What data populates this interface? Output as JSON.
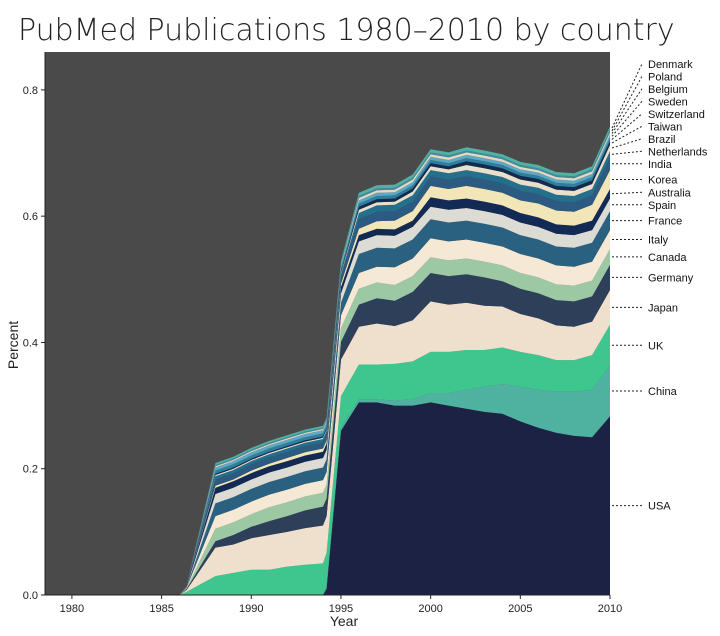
{
  "chart_data": {
    "type": "area",
    "title": "PubMed Publications 1980–2010 by country",
    "xlabel": "Year",
    "ylabel": "Percent",
    "xlim": [
      1978.5,
      2010
    ],
    "ylim": [
      0,
      0.86
    ],
    "xticks": [
      1980,
      1985,
      1990,
      1995,
      2000,
      2005,
      2010
    ],
    "yticks": [
      0.0,
      0.2,
      0.4,
      0.6,
      0.8
    ],
    "background": "#4a4a4a",
    "x": [
      1978.5,
      1986,
      1986.4,
      1988,
      1989,
      1990,
      1991,
      1992,
      1993,
      1994,
      1994.2,
      1995,
      1996,
      1997,
      1998,
      1999,
      2000,
      2001,
      2002,
      2003,
      2004,
      2005,
      2006,
      2007,
      2008,
      2009,
      2010
    ],
    "series": [
      {
        "name": "USA",
        "color": "#1c2244",
        "values": [
          0,
          0,
          0,
          0,
          0,
          0,
          0,
          0,
          0,
          0,
          0.01,
          0.26,
          0.305,
          0.305,
          0.3,
          0.3,
          0.305,
          0.3,
          0.295,
          0.29,
          0.287,
          0.275,
          0.265,
          0.257,
          0.252,
          0.25,
          0.283
        ]
      },
      {
        "name": "China",
        "color": "#4fb2a0",
        "values": [
          0,
          0,
          0,
          0,
          0,
          0,
          0,
          0,
          0,
          0,
          0.005,
          0.005,
          0.005,
          0.005,
          0.008,
          0.01,
          0.015,
          0.02,
          0.03,
          0.04,
          0.047,
          0.055,
          0.06,
          0.065,
          0.07,
          0.075,
          0.08
        ]
      },
      {
        "name": "UK",
        "color": "#3fc68f",
        "values": [
          0,
          0,
          0.005,
          0.03,
          0.035,
          0.04,
          0.04,
          0.045,
          0.048,
          0.05,
          0.052,
          0.05,
          0.055,
          0.055,
          0.058,
          0.06,
          0.065,
          0.065,
          0.063,
          0.058,
          0.058,
          0.055,
          0.055,
          0.05,
          0.05,
          0.055,
          0.065
        ]
      },
      {
        "name": "Japan",
        "color": "#efe0cd",
        "values": [
          0,
          0,
          0.003,
          0.045,
          0.045,
          0.05,
          0.055,
          0.055,
          0.058,
          0.06,
          0.058,
          0.058,
          0.06,
          0.065,
          0.06,
          0.065,
          0.08,
          0.075,
          0.075,
          0.07,
          0.065,
          0.06,
          0.058,
          0.055,
          0.053,
          0.053,
          0.055
        ]
      },
      {
        "name": "Germany",
        "color": "#2e3f5a",
        "values": [
          0,
          0,
          0.002,
          0.01,
          0.015,
          0.018,
          0.022,
          0.025,
          0.028,
          0.03,
          0.028,
          0.028,
          0.035,
          0.04,
          0.04,
          0.045,
          0.045,
          0.045,
          0.045,
          0.045,
          0.04,
          0.04,
          0.04,
          0.04,
          0.04,
          0.04,
          0.04
        ]
      },
      {
        "name": "Canada",
        "color": "#9cc8a4",
        "values": [
          0,
          0,
          0.001,
          0.02,
          0.02,
          0.02,
          0.022,
          0.022,
          0.022,
          0.022,
          0.022,
          0.022,
          0.025,
          0.025,
          0.025,
          0.025,
          0.025,
          0.025,
          0.025,
          0.025,
          0.025,
          0.025,
          0.025,
          0.025,
          0.025,
          0.025,
          0.025
        ]
      },
      {
        "name": "Italy",
        "color": "#f5e8d4",
        "values": [
          0,
          0,
          0.001,
          0.02,
          0.02,
          0.02,
          0.02,
          0.02,
          0.02,
          0.02,
          0.02,
          0.02,
          0.025,
          0.025,
          0.028,
          0.028,
          0.03,
          0.03,
          0.03,
          0.03,
          0.03,
          0.03,
          0.03,
          0.03,
          0.03,
          0.03,
          0.03
        ]
      },
      {
        "name": "France",
        "color": "#2a6080",
        "values": [
          0,
          0,
          0.001,
          0.02,
          0.02,
          0.02,
          0.02,
          0.02,
          0.02,
          0.02,
          0.02,
          0.02,
          0.03,
          0.03,
          0.03,
          0.03,
          0.03,
          0.03,
          0.03,
          0.03,
          0.03,
          0.03,
          0.03,
          0.03,
          0.03,
          0.03,
          0.03
        ]
      },
      {
        "name": "Spain",
        "color": "#dcdcd4",
        "values": [
          0,
          0,
          0.001,
          0.015,
          0.015,
          0.015,
          0.015,
          0.015,
          0.015,
          0.015,
          0.015,
          0.015,
          0.02,
          0.02,
          0.02,
          0.02,
          0.02,
          0.02,
          0.02,
          0.02,
          0.02,
          0.02,
          0.02,
          0.02,
          0.02,
          0.02,
          0.02
        ]
      },
      {
        "name": "Australia",
        "color": "#132a55",
        "values": [
          0,
          0,
          0.001,
          0.01,
          0.01,
          0.01,
          0.01,
          0.01,
          0.01,
          0.01,
          0.01,
          0.01,
          0.01,
          0.01,
          0.01,
          0.01,
          0.015,
          0.015,
          0.015,
          0.015,
          0.015,
          0.015,
          0.015,
          0.015,
          0.015,
          0.015,
          0.015
        ]
      },
      {
        "name": "Korea",
        "color": "#f2e6b8",
        "values": [
          0,
          0,
          0.0,
          0.003,
          0.003,
          0.004,
          0.004,
          0.005,
          0.005,
          0.005,
          0.005,
          0.005,
          0.01,
          0.012,
          0.014,
          0.015,
          0.018,
          0.018,
          0.02,
          0.02,
          0.02,
          0.02,
          0.022,
          0.022,
          0.022,
          0.025,
          0.03
        ]
      },
      {
        "name": "India",
        "color": "#2c5a80",
        "values": [
          0,
          0,
          0.001,
          0.01,
          0.01,
          0.01,
          0.01,
          0.01,
          0.01,
          0.01,
          0.01,
          0.01,
          0.015,
          0.015,
          0.015,
          0.015,
          0.015,
          0.015,
          0.015,
          0.015,
          0.015,
          0.015,
          0.015,
          0.015,
          0.015,
          0.015,
          0.02
        ]
      },
      {
        "name": "Netherlands",
        "color": "#246f8c",
        "values": [
          0,
          0,
          0.0,
          0.005,
          0.005,
          0.005,
          0.005,
          0.005,
          0.005,
          0.005,
          0.005,
          0.005,
          0.01,
          0.01,
          0.01,
          0.01,
          0.01,
          0.01,
          0.01,
          0.01,
          0.01,
          0.01,
          0.01,
          0.01,
          0.01,
          0.01,
          0.01
        ]
      },
      {
        "name": "Brazil",
        "color": "#e9e0cc",
        "values": [
          0,
          0,
          0.0,
          0.002,
          0.002,
          0.002,
          0.002,
          0.002,
          0.002,
          0.002,
          0.002,
          0.002,
          0.005,
          0.005,
          0.005,
          0.006,
          0.006,
          0.006,
          0.008,
          0.008,
          0.008,
          0.008,
          0.008,
          0.008,
          0.008,
          0.008,
          0.01
        ]
      },
      {
        "name": "Taiwan",
        "color": "#122b4e",
        "values": [
          0,
          0,
          0.0,
          0.002,
          0.002,
          0.002,
          0.002,
          0.002,
          0.002,
          0.002,
          0.002,
          0.002,
          0.005,
          0.005,
          0.005,
          0.005,
          0.005,
          0.005,
          0.006,
          0.006,
          0.006,
          0.006,
          0.006,
          0.006,
          0.006,
          0.006,
          0.006
        ]
      },
      {
        "name": "Switzerland",
        "color": "#2e7ea0",
        "values": [
          0,
          0,
          0.0,
          0.005,
          0.005,
          0.005,
          0.005,
          0.005,
          0.005,
          0.005,
          0.005,
          0.005,
          0.005,
          0.005,
          0.005,
          0.005,
          0.005,
          0.005,
          0.005,
          0.005,
          0.005,
          0.005,
          0.005,
          0.005,
          0.005,
          0.005,
          0.005
        ]
      },
      {
        "name": "Sweden",
        "color": "#5ea8c2",
        "values": [
          0,
          0,
          0.0,
          0.005,
          0.005,
          0.005,
          0.005,
          0.005,
          0.005,
          0.005,
          0.005,
          0.005,
          0.005,
          0.005,
          0.005,
          0.005,
          0.005,
          0.005,
          0.005,
          0.005,
          0.005,
          0.005,
          0.005,
          0.005,
          0.005,
          0.005,
          0.005
        ]
      },
      {
        "name": "Belgium",
        "color": "#e3d9c2",
        "values": [
          0,
          0,
          0.0,
          0.002,
          0.002,
          0.002,
          0.002,
          0.002,
          0.002,
          0.002,
          0.002,
          0.002,
          0.004,
          0.004,
          0.004,
          0.004,
          0.004,
          0.004,
          0.004,
          0.004,
          0.004,
          0.004,
          0.004,
          0.004,
          0.004,
          0.004,
          0.004
        ]
      },
      {
        "name": "Poland",
        "color": "#3f8d9c",
        "values": [
          0,
          0,
          0.0,
          0.002,
          0.002,
          0.002,
          0.002,
          0.002,
          0.002,
          0.002,
          0.002,
          0.002,
          0.003,
          0.003,
          0.003,
          0.003,
          0.003,
          0.003,
          0.003,
          0.003,
          0.003,
          0.003,
          0.003,
          0.003,
          0.003,
          0.003,
          0.004
        ]
      },
      {
        "name": "Denmark",
        "color": "#52b0a6",
        "values": [
          0,
          0,
          0.0,
          0.003,
          0.003,
          0.003,
          0.003,
          0.003,
          0.003,
          0.003,
          0.003,
          0.003,
          0.005,
          0.005,
          0.005,
          0.005,
          0.005,
          0.005,
          0.005,
          0.005,
          0.005,
          0.005,
          0.005,
          0.005,
          0.005,
          0.005,
          0.005
        ]
      }
    ]
  }
}
